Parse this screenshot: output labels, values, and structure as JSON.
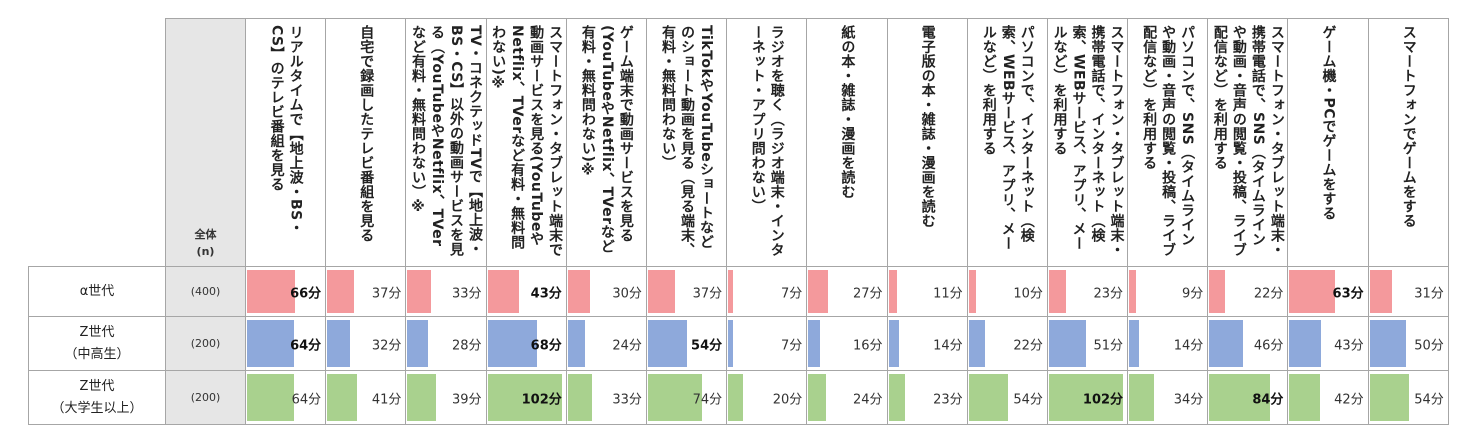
{
  "header": {
    "total_label": "全体",
    "n_label": "(n)"
  },
  "columns": [
    "リアルタイムで【地上波・BS・CS】のテレビ番組を見る",
    "自宅で録画したテレビ番組を見る",
    "TV・コネクテッドTVで【地上波・BS・CS】以外の動画サービスを見る（YouTubeやNetflix、TVerなど有料・無料問わない）※",
    "スマートフォン・タブレット端末で動画サービスを見る(YouTubeやNetflix、TVerなど有料・無料問わない)※",
    "ゲーム端末で動画サービスを見る(YouTubeやNetflix、TVerなど有料・無料問わない)※",
    "TikTokやYouTubeショートなどのショート動画を見る（見る端末、有料・無料問わない）",
    "ラジオを聴く（ラジオ端末・インターネット・アプリ問わない）",
    "紙の本・雑誌・漫画を読む",
    "電子版の本・雑誌・漫画を読む",
    "パソコンで、インターネット（検索、WEBサービス、アプリ、メールなど）を利用する",
    "スマートフォン・タブレット端末・携帯電話で、インターネット（検索、WEBサービス、アプリ、メールなど）を利用する",
    "パソコンで、SNS（タイムラインや動画・音声の閲覧・投稿、ライブ配信など）を利用する",
    "スマートフォン・タブレット端末・携帯電話で、SNS（タイムラインや動画・音声の閲覧・投稿、ライブ配信など）を利用する",
    "ゲーム機・PCでゲームをする",
    "スマートフォンでゲームをする"
  ],
  "unit": "分",
  "colors": {
    "alpha": "#f4999c",
    "z_hs": "#8ea9db",
    "z_univ": "#a9d18e",
    "shade": "#e6e6e6",
    "border": "#a6a6a6"
  },
  "chart_data": {
    "type": "table",
    "unit": "分",
    "bar_max": 102,
    "rows": [
      {
        "name": "α世代",
        "lines": [
          "α世代"
        ],
        "n": "(400)",
        "color_key": "alpha",
        "values": [
          66,
          37,
          33,
          43,
          30,
          37,
          7,
          27,
          11,
          10,
          23,
          9,
          22,
          63,
          31
        ],
        "bold": [
          true,
          false,
          false,
          true,
          false,
          false,
          false,
          false,
          false,
          false,
          false,
          false,
          false,
          true,
          false
        ]
      },
      {
        "name": "Z世代（中高生）",
        "lines": [
          "Z世代",
          "（中高生）"
        ],
        "n": "(200)",
        "color_key": "z_hs",
        "values": [
          64,
          32,
          28,
          68,
          24,
          54,
          7,
          16,
          14,
          22,
          51,
          14,
          46,
          43,
          50
        ],
        "bold": [
          true,
          false,
          false,
          true,
          false,
          true,
          false,
          false,
          false,
          false,
          false,
          false,
          false,
          false,
          false
        ]
      },
      {
        "name": "Z世代（大学生以上）",
        "lines": [
          "Z世代",
          "（大学生以上）"
        ],
        "n": "(200)",
        "color_key": "z_univ",
        "values": [
          64,
          41,
          39,
          102,
          33,
          74,
          20,
          24,
          23,
          54,
          102,
          34,
          84,
          42,
          54
        ],
        "bold": [
          false,
          false,
          false,
          true,
          false,
          false,
          false,
          false,
          false,
          false,
          true,
          false,
          true,
          false,
          false
        ]
      }
    ]
  }
}
